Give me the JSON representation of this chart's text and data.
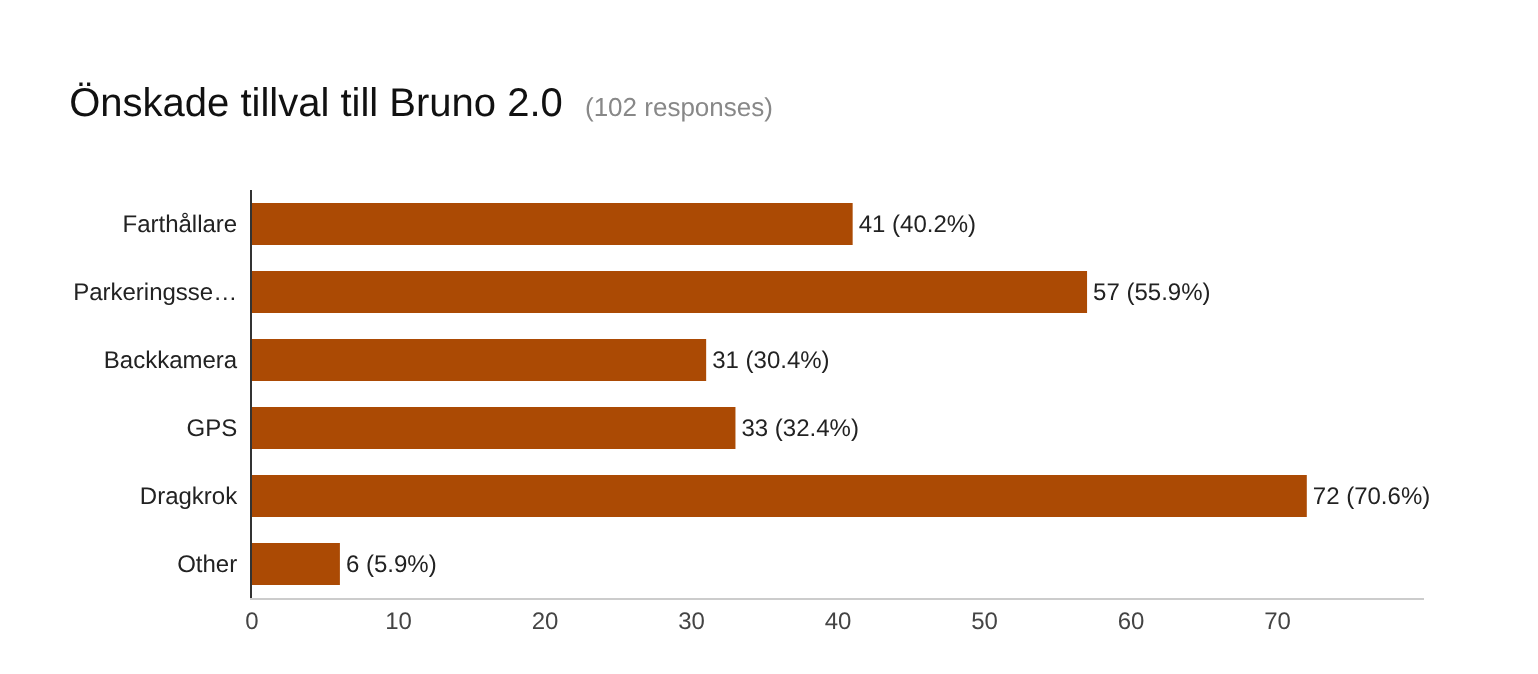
{
  "chart_data": {
    "type": "bar",
    "orientation": "horizontal",
    "title": "Önskade tillval till Bruno 2.0",
    "subtitle": "(102 responses)",
    "categories": [
      "Farthållare",
      "Parkeringsse…",
      "Backkamera",
      "GPS",
      "Dragkrok",
      "Other"
    ],
    "values": [
      41,
      57,
      31,
      33,
      72,
      6
    ],
    "value_labels": [
      "41 (40.2%)",
      "57 (55.9%)",
      "31 (30.4%)",
      "33 (32.4%)",
      "72 (70.6%)",
      "6 (5.9%)"
    ],
    "color": "#ab4a04",
    "xlim": [
      0,
      80
    ],
    "xticks": [
      0,
      10,
      20,
      30,
      40,
      50,
      60,
      70
    ]
  }
}
